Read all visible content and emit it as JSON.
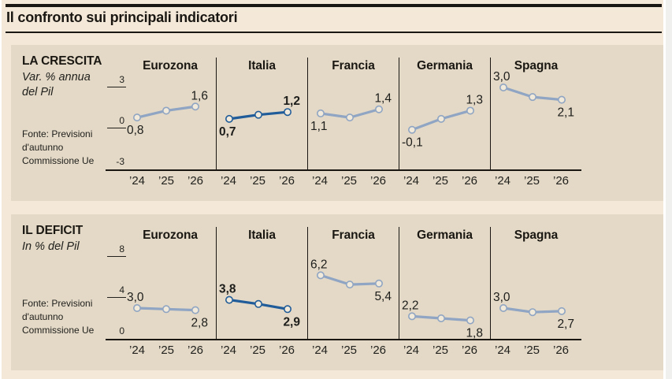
{
  "page": {
    "title": "Il confronto sui principali indicatori"
  },
  "colors": {
    "page_bg": "#f4e8d8",
    "panel_bg": "#e3d9c6",
    "ink": "#1a1712",
    "line_muted": "#8fa5c3",
    "line_highlight": "#1f5c99",
    "marker_fill": "#f1e9da"
  },
  "chart_data": [
    {
      "type": "line",
      "title": "LA CRESCITA",
      "subtitle": "Var. % annua del Pil",
      "source": "Fonte: Previsioni d'autunno Commissione Ue",
      "x": [
        "’24",
        "’25",
        "’26"
      ],
      "ylim": [
        -3,
        3
      ],
      "yticks": [
        3,
        0,
        -3
      ],
      "grid": false,
      "legend": "none",
      "series": [
        {
          "name": "Eurozona",
          "values": [
            0.8,
            1.3,
            1.6
          ],
          "first_label": "0,8",
          "last_label": "1,6",
          "first_label_pos": "below",
          "last_label_pos": "above",
          "highlight": false
        },
        {
          "name": "Italia",
          "values": [
            0.7,
            1.0,
            1.2
          ],
          "first_label": "0,7",
          "last_label": "1,2",
          "first_label_pos": "below",
          "last_label_pos": "above",
          "highlight": true
        },
        {
          "name": "Francia",
          "values": [
            1.1,
            0.8,
            1.4
          ],
          "first_label": "1,1",
          "last_label": "1,4",
          "first_label_pos": "below",
          "last_label_pos": "above",
          "highlight": false
        },
        {
          "name": "Germania",
          "values": [
            -0.1,
            0.7,
            1.3
          ],
          "first_label": "-0,1",
          "last_label": "1,3",
          "first_label_pos": "below",
          "last_label_pos": "above",
          "highlight": false
        },
        {
          "name": "Spagna",
          "values": [
            3.0,
            2.3,
            2.1
          ],
          "first_label": "3,0",
          "last_label": "2,1",
          "first_label_pos": "above",
          "last_label_pos": "below",
          "highlight": false
        }
      ]
    },
    {
      "type": "line",
      "title": "IL DEFICIT",
      "subtitle": "In % del Pil",
      "source": "Fonte: Previsioni d'autunno Commissione Ue",
      "x": [
        "’24",
        "’25",
        "’26"
      ],
      "ylim": [
        0,
        8
      ],
      "yticks": [
        8,
        4,
        0
      ],
      "grid": false,
      "legend": "none",
      "series": [
        {
          "name": "Eurozona",
          "values": [
            3.0,
            2.9,
            2.8
          ],
          "first_label": "3,0",
          "last_label": "2,8",
          "first_label_pos": "above",
          "last_label_pos": "below",
          "highlight": false
        },
        {
          "name": "Italia",
          "values": [
            3.8,
            3.4,
            2.9
          ],
          "first_label": "3,8",
          "last_label": "2,9",
          "first_label_pos": "above",
          "last_label_pos": "below",
          "highlight": true
        },
        {
          "name": "Francia",
          "values": [
            6.2,
            5.3,
            5.4
          ],
          "first_label": "6,2",
          "last_label": "5,4",
          "first_label_pos": "above",
          "last_label_pos": "below",
          "highlight": false
        },
        {
          "name": "Germania",
          "values": [
            2.2,
            2.0,
            1.8
          ],
          "first_label": "2,2",
          "last_label": "1,8",
          "first_label_pos": "above",
          "last_label_pos": "below",
          "highlight": false
        },
        {
          "name": "Spagna",
          "values": [
            3.0,
            2.6,
            2.7
          ],
          "first_label": "3,0",
          "last_label": "2,7",
          "first_label_pos": "above",
          "last_label_pos": "below",
          "highlight": false
        }
      ]
    }
  ]
}
